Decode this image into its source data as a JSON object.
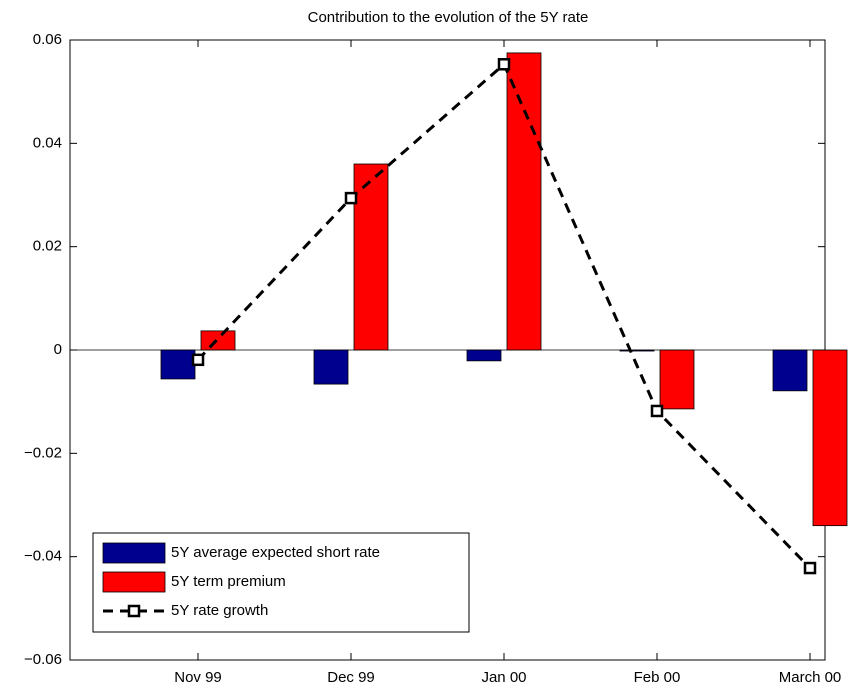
{
  "chart_data": {
    "type": "bar",
    "title": "Contribution to the evolution of the 5Y rate",
    "categories": [
      "Nov 99",
      "Dec 99",
      "Jan 00",
      "Feb 00",
      "March 00"
    ],
    "series": [
      {
        "name": "5Y average expected short rate",
        "type": "bar",
        "color": "#00008f",
        "values": [
          -0.0056,
          -0.0066,
          -0.0021,
          -0.0002,
          -0.0079
        ]
      },
      {
        "name": "5Y term premium",
        "type": "bar",
        "color": "#ff0000",
        "values": [
          0.0037,
          0.036,
          0.0575,
          -0.0114,
          -0.034
        ]
      },
      {
        "name": "5Y rate growth",
        "type": "line",
        "color": "#000000",
        "values": [
          -0.0019,
          0.0294,
          0.0553,
          -0.0118,
          -0.0422
        ]
      }
    ],
    "ylim": [
      -0.06,
      0.06
    ],
    "yticks": [
      {
        "value": -0.06,
        "label": "−0.06"
      },
      {
        "value": -0.04,
        "label": "−0.04"
      },
      {
        "value": -0.02,
        "label": "−0.02"
      },
      0,
      0.02,
      0.04,
      0.06
    ],
    "legend": "lower left"
  }
}
